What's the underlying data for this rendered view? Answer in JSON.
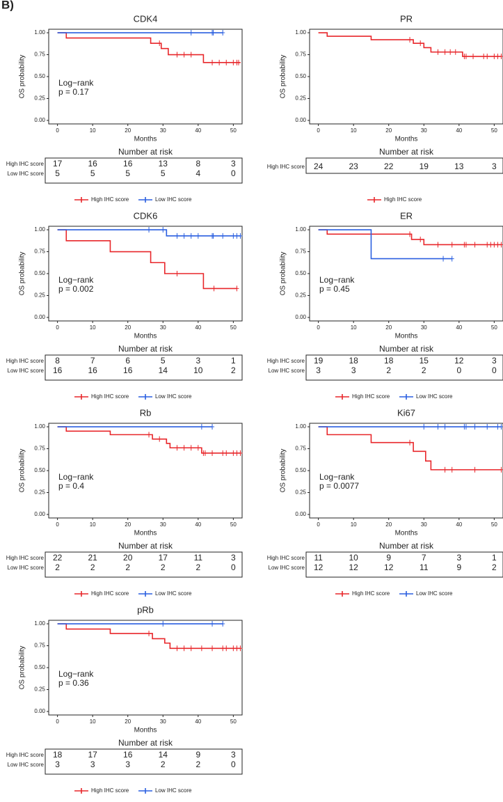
{
  "panel_label": "B)",
  "chart_data": [
    {
      "type": "km",
      "title": "CDK4",
      "xlabel": "Months",
      "ylabel": "OS probability",
      "xlim": [
        -2.5,
        52.5
      ],
      "ylim": [
        -0.04,
        1.04
      ],
      "xticks": [
        0,
        10,
        20,
        30,
        40,
        50
      ],
      "yticks": [
        {
          "value": 0,
          "label": "0.00"
        },
        {
          "value": 0.25,
          "label": "0.25"
        },
        {
          "value": 0.5,
          "label": "0.50"
        },
        {
          "value": 0.75,
          "label": "0.75"
        },
        {
          "value": 1,
          "label": "1.00"
        }
      ],
      "annotation": [
        "Log−rank",
        "p = 0.17"
      ],
      "risk_table_title": "Number at risk",
      "series": [
        {
          "name": "High IHC score",
          "color": "#e8262a",
          "x": [
            0,
            2.5,
            26.5,
            29.5,
            31.5,
            41.5,
            52
          ],
          "values": [
            1,
            0.94,
            0.88,
            0.82,
            0.75,
            0.66,
            0.66
          ],
          "censor_x": [
            29,
            34,
            36,
            38,
            44,
            46,
            48,
            50,
            51,
            51.5
          ],
          "censor_values": [
            0.88,
            0.75,
            0.75,
            0.75,
            0.66,
            0.66,
            0.66,
            0.66,
            0.66,
            0.66
          ],
          "at_risk": [
            17,
            16,
            16,
            13,
            8,
            3
          ]
        },
        {
          "name": "Low IHC score",
          "color": "#2a5fe0",
          "x": [
            0,
            47
          ],
          "values": [
            1,
            1
          ],
          "censor_x": [
            38,
            44,
            44.3,
            47
          ],
          "censor_values": [
            1,
            1,
            1,
            1
          ],
          "at_risk": [
            5,
            5,
            5,
            5,
            4,
            0
          ]
        }
      ]
    },
    {
      "type": "km",
      "title": "PR",
      "xlabel": "Months",
      "ylabel": "OS probability",
      "xlim": [
        -2.5,
        52.5
      ],
      "ylim": [
        -0.04,
        1.04
      ],
      "xticks": [
        0,
        10,
        20,
        30,
        40,
        50
      ],
      "yticks": [
        {
          "value": 0,
          "label": "0.00"
        },
        {
          "value": 0.25,
          "label": "0.25"
        },
        {
          "value": 0.5,
          "label": "0.50"
        },
        {
          "value": 0.75,
          "label": "0.75"
        },
        {
          "value": 1,
          "label": "1.00"
        }
      ],
      "risk_table_title": "Number at risk",
      "series": [
        {
          "name": "High IHC score",
          "color": "#e8262a",
          "x": [
            0,
            2.5,
            15,
            27,
            30,
            32,
            41,
            52
          ],
          "values": [
            1,
            0.96,
            0.92,
            0.88,
            0.83,
            0.78,
            0.73,
            0.73
          ],
          "censor_x": [
            26,
            29,
            34,
            36,
            37.5,
            39,
            41.5,
            42,
            44,
            47,
            48,
            50,
            51,
            52
          ],
          "censor_values": [
            0.92,
            0.88,
            0.78,
            0.78,
            0.78,
            0.78,
            0.73,
            0.73,
            0.73,
            0.73,
            0.73,
            0.73,
            0.73,
            0.73
          ],
          "at_risk": [
            24,
            23,
            22,
            19,
            13,
            3
          ]
        }
      ]
    },
    {
      "type": "km",
      "title": "CDK6",
      "xlabel": "Months",
      "ylabel": "OS probability",
      "xlim": [
        -2.5,
        52.5
      ],
      "ylim": [
        -0.04,
        1.04
      ],
      "xticks": [
        0,
        10,
        20,
        30,
        40,
        50
      ],
      "yticks": [
        {
          "value": 0,
          "label": "0.00"
        },
        {
          "value": 0.25,
          "label": "0.25"
        },
        {
          "value": 0.5,
          "label": "0.50"
        },
        {
          "value": 0.75,
          "label": "0.75"
        },
        {
          "value": 1,
          "label": "1.00"
        }
      ],
      "annotation": [
        "Log−rank",
        "p = 0.002"
      ],
      "risk_table_title": "Number at risk",
      "series": [
        {
          "name": "High IHC score",
          "color": "#e8262a",
          "x": [
            0,
            2.5,
            15,
            26.5,
            30.5,
            41.5,
            51
          ],
          "values": [
            1,
            0.875,
            0.75,
            0.625,
            0.5,
            0.33,
            0.33
          ],
          "censor_x": [
            34,
            44.5,
            51
          ],
          "censor_values": [
            0.5,
            0.33,
            0.33
          ],
          "at_risk": [
            8,
            7,
            6,
            5,
            3,
            1
          ]
        },
        {
          "name": "Low IHC score",
          "color": "#2a5fe0",
          "x": [
            0,
            31,
            52
          ],
          "values": [
            1,
            0.93,
            0.93
          ],
          "censor_x": [
            26,
            30,
            34,
            36,
            38,
            40,
            44,
            44.3,
            47,
            50,
            51,
            52
          ],
          "censor_values": [
            1,
            1,
            0.93,
            0.93,
            0.93,
            0.93,
            0.93,
            0.93,
            0.93,
            0.93,
            0.93,
            0.93
          ],
          "at_risk": [
            16,
            16,
            16,
            14,
            10,
            2
          ]
        }
      ]
    },
    {
      "type": "km",
      "title": "ER",
      "xlabel": "Months",
      "ylabel": "OS probability",
      "xlim": [
        -2.5,
        52.5
      ],
      "ylim": [
        -0.04,
        1.04
      ],
      "xticks": [
        0,
        10,
        20,
        30,
        40,
        50
      ],
      "yticks": [
        {
          "value": 0,
          "label": "0.00"
        },
        {
          "value": 0.25,
          "label": "0.25"
        },
        {
          "value": 0.5,
          "label": "0.50"
        },
        {
          "value": 0.75,
          "label": "0.75"
        },
        {
          "value": 1,
          "label": "1.00"
        }
      ],
      "annotation": [
        "Log−rank",
        "p = 0.45"
      ],
      "risk_table_title": "Number at risk",
      "series": [
        {
          "name": "High IHC score",
          "color": "#e8262a",
          "x": [
            0,
            2.5,
            26.5,
            30,
            52
          ],
          "values": [
            1,
            0.95,
            0.89,
            0.83,
            0.83
          ],
          "censor_x": [
            26,
            29,
            34,
            38,
            41.5,
            42,
            44.5,
            48,
            49,
            50,
            51,
            52
          ],
          "censor_values": [
            0.95,
            0.89,
            0.83,
            0.83,
            0.83,
            0.83,
            0.83,
            0.83,
            0.83,
            0.83,
            0.83,
            0.83
          ],
          "at_risk": [
            19,
            18,
            18,
            15,
            12,
            3
          ]
        },
        {
          "name": "Low IHC score",
          "color": "#2a5fe0",
          "x": [
            0,
            15,
            38
          ],
          "values": [
            1,
            0.67,
            0.67
          ],
          "censor_x": [
            35.5,
            38
          ],
          "censor_values": [
            0.67,
            0.67
          ],
          "at_risk": [
            3,
            3,
            2,
            2,
            0,
            0
          ]
        }
      ]
    },
    {
      "type": "km",
      "title": "Rb",
      "xlabel": "Months",
      "ylabel": "OS probability",
      "xlim": [
        -2.5,
        52.5
      ],
      "ylim": [
        -0.04,
        1.04
      ],
      "xticks": [
        0,
        10,
        20,
        30,
        40,
        50
      ],
      "yticks": [
        {
          "value": 0,
          "label": "0.00"
        },
        {
          "value": 0.25,
          "label": "0.25"
        },
        {
          "value": 0.5,
          "label": "0.50"
        },
        {
          "value": 0.75,
          "label": "0.75"
        },
        {
          "value": 1,
          "label": "1.00"
        }
      ],
      "annotation": [
        "Log−rank",
        "p = 0.4"
      ],
      "risk_table_title": "Number at risk",
      "series": [
        {
          "name": "High IHC score",
          "color": "#e8262a",
          "x": [
            0,
            2.5,
            15,
            27,
            31,
            32,
            41,
            52
          ],
          "values": [
            1,
            0.95,
            0.91,
            0.86,
            0.81,
            0.76,
            0.7,
            0.7
          ],
          "censor_x": [
            26,
            29,
            34,
            36,
            38,
            40,
            41.5,
            42,
            44,
            47,
            48,
            50,
            51,
            52
          ],
          "censor_values": [
            0.91,
            0.86,
            0.76,
            0.76,
            0.76,
            0.76,
            0.7,
            0.7,
            0.7,
            0.7,
            0.7,
            0.7,
            0.7,
            0.7
          ],
          "at_risk": [
            22,
            21,
            20,
            17,
            11,
            3
          ]
        },
        {
          "name": "Low IHC score",
          "color": "#2a5fe0",
          "x": [
            0,
            44
          ],
          "values": [
            1,
            1
          ],
          "censor_x": [
            41,
            44
          ],
          "censor_values": [
            1,
            1
          ],
          "at_risk": [
            2,
            2,
            2,
            2,
            2,
            0
          ]
        }
      ]
    },
    {
      "type": "km",
      "title": "Ki67",
      "xlabel": "Months",
      "ylabel": "OS probability",
      "xlim": [
        -2.5,
        52.5
      ],
      "ylim": [
        -0.04,
        1.04
      ],
      "xticks": [
        0,
        10,
        20,
        30,
        40,
        50
      ],
      "yticks": [
        {
          "value": 0,
          "label": "0.00"
        },
        {
          "value": 0.25,
          "label": "0.25"
        },
        {
          "value": 0.5,
          "label": "0.50"
        },
        {
          "value": 0.75,
          "label": "0.75"
        },
        {
          "value": 1,
          "label": "1.00"
        }
      ],
      "annotation": [
        "Log−rank",
        "p = 0.0077"
      ],
      "risk_table_title": "Number at risk",
      "series": [
        {
          "name": "High IHC score",
          "color": "#e8262a",
          "x": [
            0,
            2.5,
            15,
            27,
            30.5,
            32,
            52
          ],
          "values": [
            1,
            0.91,
            0.82,
            0.72,
            0.61,
            0.51,
            0.51
          ],
          "censor_x": [
            26,
            36,
            38,
            44.5,
            52
          ],
          "censor_values": [
            0.82,
            0.51,
            0.51,
            0.51,
            0.51
          ],
          "at_risk": [
            11,
            10,
            9,
            7,
            3,
            1
          ]
        },
        {
          "name": "Low IHC score",
          "color": "#2a5fe0",
          "x": [
            0,
            52
          ],
          "values": [
            1,
            1
          ],
          "censor_x": [
            30,
            34,
            36,
            41.5,
            42,
            44.5,
            48,
            51,
            52
          ],
          "censor_values": [
            1,
            1,
            1,
            1,
            1,
            1,
            1,
            1,
            1
          ],
          "at_risk": [
            12,
            12,
            12,
            11,
            9,
            2
          ]
        }
      ]
    },
    {
      "type": "km",
      "title": "pRb",
      "xlabel": "Months",
      "ylabel": "OS probability",
      "xlim": [
        -2.5,
        52.5
      ],
      "ylim": [
        -0.04,
        1.04
      ],
      "xticks": [
        0,
        10,
        20,
        30,
        40,
        50
      ],
      "yticks": [
        {
          "value": 0,
          "label": "0.00"
        },
        {
          "value": 0.25,
          "label": "0.25"
        },
        {
          "value": 0.5,
          "label": "0.50"
        },
        {
          "value": 0.75,
          "label": "0.75"
        },
        {
          "value": 1,
          "label": "1.00"
        }
      ],
      "annotation": [
        "Log−rank",
        "p = 0.36"
      ],
      "risk_table_title": "Number at risk",
      "series": [
        {
          "name": "High IHC score",
          "color": "#e8262a",
          "x": [
            0,
            2.5,
            15,
            27,
            30.5,
            32,
            52
          ],
          "values": [
            1,
            0.94,
            0.89,
            0.83,
            0.78,
            0.72,
            0.72
          ],
          "censor_x": [
            26,
            34,
            36,
            38,
            41,
            44,
            47,
            48,
            50,
            51,
            52
          ],
          "censor_values": [
            0.89,
            0.72,
            0.72,
            0.72,
            0.72,
            0.72,
            0.72,
            0.72,
            0.72,
            0.72,
            0.72
          ],
          "at_risk": [
            18,
            17,
            16,
            14,
            9,
            3
          ]
        },
        {
          "name": "Low IHC score",
          "color": "#2a5fe0",
          "x": [
            0,
            47
          ],
          "values": [
            1,
            1
          ],
          "censor_x": [
            30,
            44,
            47
          ],
          "censor_values": [
            1,
            1,
            1
          ],
          "at_risk": [
            3,
            3,
            3,
            2,
            2,
            0
          ]
        }
      ]
    }
  ]
}
